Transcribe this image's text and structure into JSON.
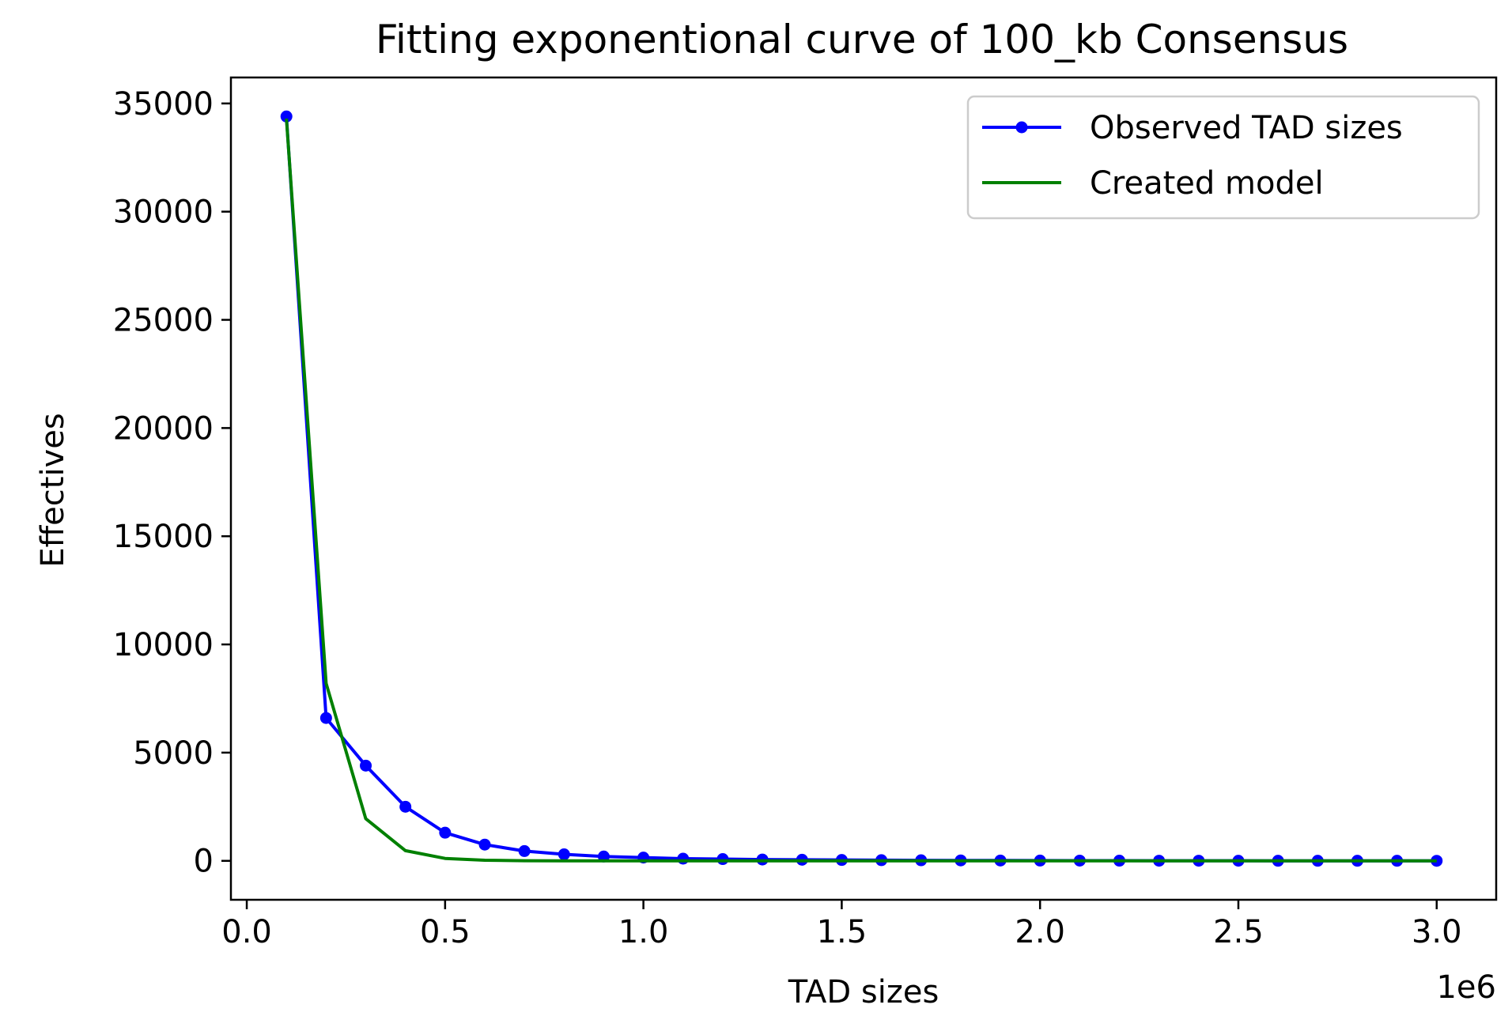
{
  "chart_data": {
    "type": "line",
    "title": "Fitting exponentional curve of 100_kb Consensus",
    "xlabel": "TAD sizes",
    "ylabel": "Effectives",
    "x_offset_text": "1e6",
    "xlim": [
      -40000,
      3150000
    ],
    "ylim": [
      -1800,
      36200
    ],
    "x_ticks": [
      0,
      500000,
      1000000,
      1500000,
      2000000,
      2500000,
      3000000
    ],
    "x_tick_labels": [
      "0.0",
      "0.5",
      "1.0",
      "1.5",
      "2.0",
      "2.5",
      "3.0"
    ],
    "y_ticks": [
      0,
      5000,
      10000,
      15000,
      20000,
      25000,
      30000,
      35000
    ],
    "y_tick_labels": [
      "0",
      "5000",
      "10000",
      "15000",
      "20000",
      "25000",
      "30000",
      "35000"
    ],
    "x": [
      100000,
      200000,
      300000,
      400000,
      500000,
      600000,
      700000,
      800000,
      900000,
      1000000,
      1100000,
      1200000,
      1300000,
      1400000,
      1500000,
      1600000,
      1700000,
      1800000,
      1900000,
      2000000,
      2100000,
      2200000,
      2300000,
      2400000,
      2500000,
      2600000,
      2700000,
      2800000,
      2900000,
      3000000
    ],
    "series": [
      {
        "name": "Observed TAD sizes",
        "color": "#0000ff",
        "marker": "circle",
        "values": [
          34400,
          6600,
          4400,
          2500,
          1300,
          750,
          450,
          300,
          200,
          150,
          100,
          80,
          60,
          50,
          40,
          30,
          25,
          20,
          15,
          12,
          10,
          8,
          6,
          5,
          4,
          3,
          3,
          2,
          2,
          1
        ]
      },
      {
        "name": "Created model",
        "color": "#008000",
        "marker": "none",
        "values": [
          34300,
          8200,
          1950,
          470,
          110,
          27,
          6,
          2,
          0,
          0,
          0,
          0,
          0,
          0,
          0,
          0,
          0,
          0,
          0,
          0,
          0,
          0,
          0,
          0,
          0,
          0,
          0,
          0,
          0,
          0
        ]
      }
    ],
    "grid": false,
    "legend_position": "top-right"
  }
}
